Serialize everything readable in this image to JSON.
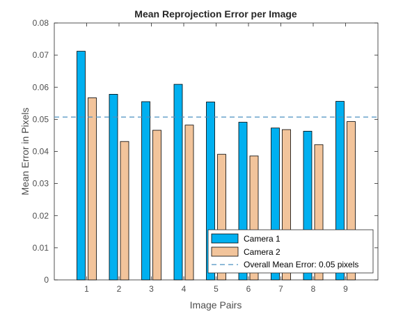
{
  "chart_data": {
    "type": "bar",
    "title": "Mean Reprojection Error per Image",
    "xlabel": "Image Pairs",
    "ylabel": "Mean Error in Pixels",
    "categories": [
      "1",
      "2",
      "3",
      "4",
      "5",
      "6",
      "7",
      "8",
      "9"
    ],
    "ylim": [
      0,
      0.08
    ],
    "yticks": [
      "0",
      "0.01",
      "0.02",
      "0.03",
      "0.04",
      "0.05",
      "0.06",
      "0.07",
      "0.08"
    ],
    "series": [
      {
        "name": "Camera 1",
        "color": "#00b0f0",
        "values": [
          0.0712,
          0.0578,
          0.0555,
          0.0609,
          0.0554,
          0.0491,
          0.0473,
          0.0463,
          0.0556
        ]
      },
      {
        "name": "Camera 2",
        "color": "#f2c49b",
        "values": [
          0.0567,
          0.0431,
          0.0466,
          0.0482,
          0.0391,
          0.0386,
          0.0468,
          0.0421,
          0.0493
        ]
      }
    ],
    "reference_line": {
      "name": "Overall Mean Error: 0.05 pixels",
      "value": 0.0507,
      "color": "#4a90c0",
      "style": "dashed"
    },
    "grid": false,
    "legend_position": "bottom-right"
  }
}
